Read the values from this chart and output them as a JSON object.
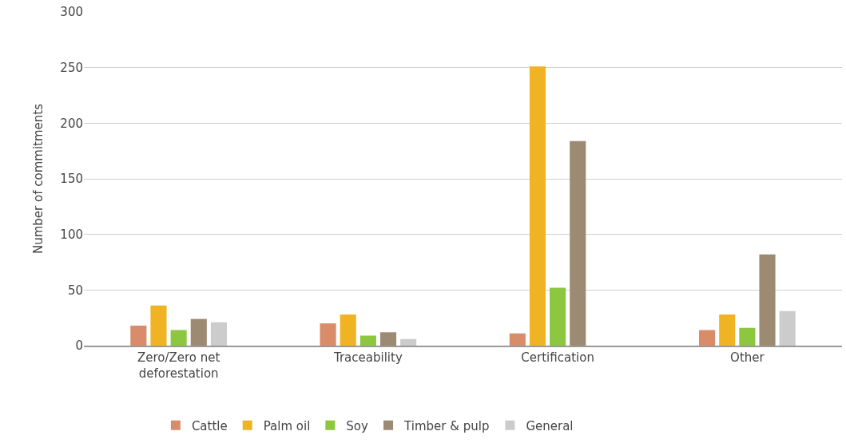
{
  "chart_data": {
    "type": "bar",
    "ylabel": "Number of commitments",
    "categories": [
      "Zero/Zero net\ndeforestation",
      "Traceability",
      "Certification",
      "Other"
    ],
    "series": [
      {
        "name": "Cattle",
        "color": "#d98c6a",
        "values": [
          18,
          20,
          11,
          14
        ]
      },
      {
        "name": "Palm oil",
        "color": "#f0b323",
        "values": [
          36,
          28,
          251,
          28
        ]
      },
      {
        "name": "Soy",
        "color": "#8dc63f",
        "values": [
          14,
          9,
          52,
          16
        ]
      },
      {
        "name": "Timber & pulp",
        "color": "#9c8a73",
        "values": [
          24,
          12,
          184,
          82
        ]
      },
      {
        "name": "General",
        "color": "#cccccc",
        "values": [
          21,
          6,
          null,
          31
        ]
      }
    ],
    "ylim": [
      0,
      300
    ],
    "yticks": [
      0,
      50,
      100,
      150,
      200,
      250,
      300
    ],
    "grid": "y",
    "legend": "bottom"
  }
}
